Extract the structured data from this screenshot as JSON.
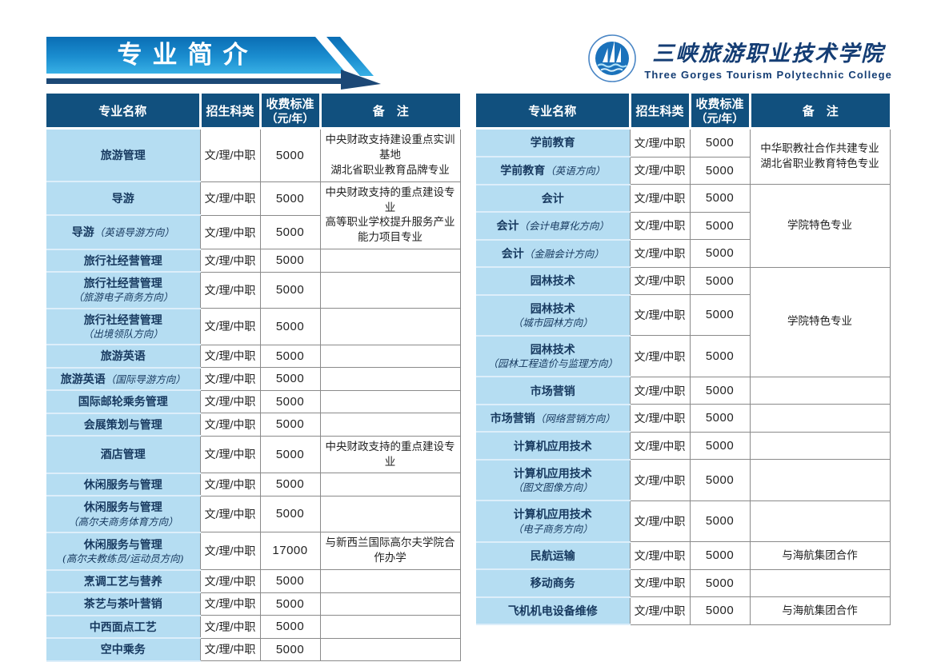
{
  "banner": {
    "title": "专业简介"
  },
  "logo": {
    "cn": "三峡旅游职业技术学院",
    "en": "Three Gorges Tourism Polytechnic College"
  },
  "table_headers": {
    "major": "专业名称",
    "category": "招生科类",
    "fee_line1": "收费标准",
    "fee_line2": "（元/年）",
    "remark": "备　注"
  },
  "colors": {
    "header_bg": "#11507e",
    "major_column_bg": "#b5ddf2",
    "banner_gradient_top": "#0a6db4",
    "banner_gradient_bottom": "#38b0e5",
    "underline_navy": "#1c4876",
    "navy_text": "#143d74"
  },
  "left_table": {
    "rows": [
      {
        "main": "旅游管理",
        "paren": null,
        "block": false,
        "cat": "文/理/中职",
        "fee": "5000",
        "remark": {
          "span": 1,
          "lines": [
            "中央财政支持建设重点实训基地",
            "湖北省职业教育品牌专业"
          ]
        }
      },
      {
        "main": "导游",
        "paren": null,
        "block": false,
        "cat": "文/理/中职",
        "fee": "5000",
        "remark": {
          "span": 2,
          "lines": [
            "中央财政支持的重点建设专业",
            "高等职业学校提升服务产业能力项目专业"
          ]
        }
      },
      {
        "main": "导游",
        "paren": "（英语导游方向）",
        "block": false,
        "cat": "文/理/中职",
        "fee": "5000",
        "remark": "covered"
      },
      {
        "main": "旅行社经营管理",
        "paren": null,
        "block": false,
        "cat": "文/理/中职",
        "fee": "5000",
        "remark": {
          "span": 1,
          "lines": []
        }
      },
      {
        "main": "旅行社经营管理",
        "paren": "（旅游电子商务方向）",
        "block": true,
        "cat": "文/理/中职",
        "fee": "5000",
        "remark": {
          "span": 1,
          "lines": []
        }
      },
      {
        "main": "旅行社经营管理",
        "paren": "（出境领队方向）",
        "block": true,
        "cat": "文/理/中职",
        "fee": "5000",
        "remark": {
          "span": 1,
          "lines": []
        }
      },
      {
        "main": "旅游英语",
        "paren": null,
        "block": false,
        "cat": "文/理/中职",
        "fee": "5000",
        "remark": {
          "span": 1,
          "lines": []
        }
      },
      {
        "main": "旅游英语",
        "paren": "（国际导游方向）",
        "block": false,
        "cat": "文/理/中职",
        "fee": "5000",
        "remark": {
          "span": 1,
          "lines": []
        }
      },
      {
        "main": "国际邮轮乘务管理",
        "paren": null,
        "block": false,
        "cat": "文/理/中职",
        "fee": "5000",
        "remark": {
          "span": 1,
          "lines": []
        }
      },
      {
        "main": "会展策划与管理",
        "paren": null,
        "block": false,
        "cat": "文/理/中职",
        "fee": "5000",
        "remark": {
          "span": 1,
          "lines": []
        }
      },
      {
        "main": "酒店管理",
        "paren": null,
        "block": false,
        "cat": "文/理/中职",
        "fee": "5000",
        "remark": {
          "span": 1,
          "lines": [
            "中央财政支持的重点建设专业"
          ]
        }
      },
      {
        "main": "休闲服务与管理",
        "paren": null,
        "block": false,
        "cat": "文/理/中职",
        "fee": "5000",
        "remark": {
          "span": 1,
          "lines": []
        }
      },
      {
        "main": "休闲服务与管理",
        "paren": "（高尔夫商务体育方向）",
        "block": true,
        "cat": "文/理/中职",
        "fee": "5000",
        "remark": {
          "span": 1,
          "lines": []
        }
      },
      {
        "main": "休闲服务与管理",
        "paren": "(高尔夫教练员/运动员方向)",
        "block": true,
        "cat": "文/理/中职",
        "fee": "17000",
        "remark": {
          "span": 1,
          "lines": [
            "与新西兰国际高尔夫学院合作办学"
          ]
        }
      },
      {
        "main": "烹调工艺与营养",
        "paren": null,
        "block": false,
        "cat": "文/理/中职",
        "fee": "5000",
        "remark": {
          "span": 1,
          "lines": []
        }
      },
      {
        "main": "茶艺与茶叶营销",
        "paren": null,
        "block": false,
        "cat": "文/理/中职",
        "fee": "5000",
        "remark": {
          "span": 1,
          "lines": []
        }
      },
      {
        "main": "中西面点工艺",
        "paren": null,
        "block": false,
        "cat": "文/理/中职",
        "fee": "5000",
        "remark": {
          "span": 1,
          "lines": []
        }
      },
      {
        "main": "空中乘务",
        "paren": null,
        "block": false,
        "cat": "文/理/中职",
        "fee": "5000",
        "remark": {
          "span": 1,
          "lines": []
        }
      }
    ]
  },
  "right_table": {
    "rows": [
      {
        "main": "学前教育",
        "paren": null,
        "block": false,
        "cat": "文/理/中职",
        "fee": "5000",
        "remark": {
          "span": 2,
          "lines": [
            "中华职教社合作共建专业",
            "湖北省职业教育特色专业"
          ]
        }
      },
      {
        "main": "学前教育",
        "paren": "（英语方向）",
        "block": false,
        "cat": "文/理/中职",
        "fee": "5000",
        "remark": "covered"
      },
      {
        "main": "会计",
        "paren": null,
        "block": false,
        "cat": "文/理/中职",
        "fee": "5000",
        "remark": {
          "span": 3,
          "lines": [
            "学院特色专业"
          ]
        }
      },
      {
        "main": "会计",
        "paren": "（会计电算化方向）",
        "block": false,
        "cat": "文/理/中职",
        "fee": "5000",
        "remark": "covered"
      },
      {
        "main": "会计",
        "paren": "（金融会计方向）",
        "block": false,
        "cat": "文/理/中职",
        "fee": "5000",
        "remark": "covered"
      },
      {
        "main": "园林技术",
        "paren": null,
        "block": false,
        "cat": "文/理/中职",
        "fee": "5000",
        "remark": {
          "span": 3,
          "lines": [
            "学院特色专业"
          ]
        }
      },
      {
        "main": "园林技术",
        "paren": "（城市园林方向）",
        "block": true,
        "cat": "文/理/中职",
        "fee": "5000",
        "remark": "covered"
      },
      {
        "main": "园林技术",
        "paren": "（园林工程造价与监理方向）",
        "block": true,
        "cat": "文/理/中职",
        "fee": "5000",
        "remark": "covered"
      },
      {
        "main": "市场营销",
        "paren": null,
        "block": false,
        "cat": "文/理/中职",
        "fee": "5000",
        "remark": {
          "span": 1,
          "lines": []
        }
      },
      {
        "main": "市场营销",
        "paren": "（网络营销方向）",
        "block": false,
        "cat": "文/理/中职",
        "fee": "5000",
        "remark": {
          "span": 1,
          "lines": []
        }
      },
      {
        "main": "计算机应用技术",
        "paren": null,
        "block": false,
        "cat": "文/理/中职",
        "fee": "5000",
        "remark": {
          "span": 1,
          "lines": []
        }
      },
      {
        "main": "计算机应用技术",
        "paren": "（图文图像方向）",
        "block": true,
        "cat": "文/理/中职",
        "fee": "5000",
        "remark": {
          "span": 1,
          "lines": []
        }
      },
      {
        "main": "计算机应用技术",
        "paren": "（电子商务方向）",
        "block": true,
        "cat": "文/理/中职",
        "fee": "5000",
        "remark": {
          "span": 1,
          "lines": []
        }
      },
      {
        "main": "民航运输",
        "paren": null,
        "block": false,
        "cat": "文/理/中职",
        "fee": "5000",
        "remark": {
          "span": 1,
          "lines": [
            "与海航集团合作"
          ]
        }
      },
      {
        "main": "移动商务",
        "paren": null,
        "block": false,
        "cat": "文/理/中职",
        "fee": "5000",
        "remark": {
          "span": 1,
          "lines": []
        }
      },
      {
        "main": "飞机机电设备维修",
        "paren": null,
        "block": false,
        "cat": "文/理/中职",
        "fee": "5000",
        "remark": {
          "span": 1,
          "lines": [
            "与海航集团合作"
          ]
        }
      }
    ]
  }
}
